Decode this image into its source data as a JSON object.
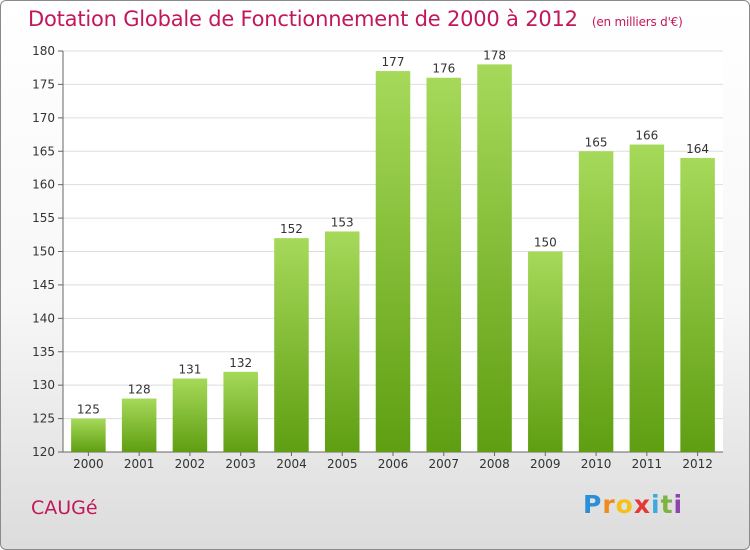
{
  "header": {
    "title": "Dotation Globale de Fonctionnement de 2000 à 2012",
    "unit": "(en milliers d'€)"
  },
  "footer": {
    "commune": "CAUGé",
    "logo_letters": [
      "P",
      "r",
      "o",
      "x",
      "i",
      "t",
      "i"
    ]
  },
  "colors": {
    "title": "#c2185b",
    "bar_light": "#a6d95a",
    "bar_dark": "#5f9e12"
  },
  "chart_data": {
    "type": "bar",
    "categories": [
      "2000",
      "2001",
      "2002",
      "2003",
      "2004",
      "2005",
      "2006",
      "2007",
      "2008",
      "2009",
      "2010",
      "2011",
      "2012"
    ],
    "values": [
      125,
      128,
      131,
      132,
      152,
      153,
      177,
      176,
      178,
      150,
      165,
      166,
      164
    ],
    "ylim": [
      120,
      180
    ],
    "yticks": [
      120,
      125,
      130,
      135,
      140,
      145,
      150,
      155,
      160,
      165,
      170,
      175,
      180
    ],
    "grid": true,
    "legend": "none"
  }
}
